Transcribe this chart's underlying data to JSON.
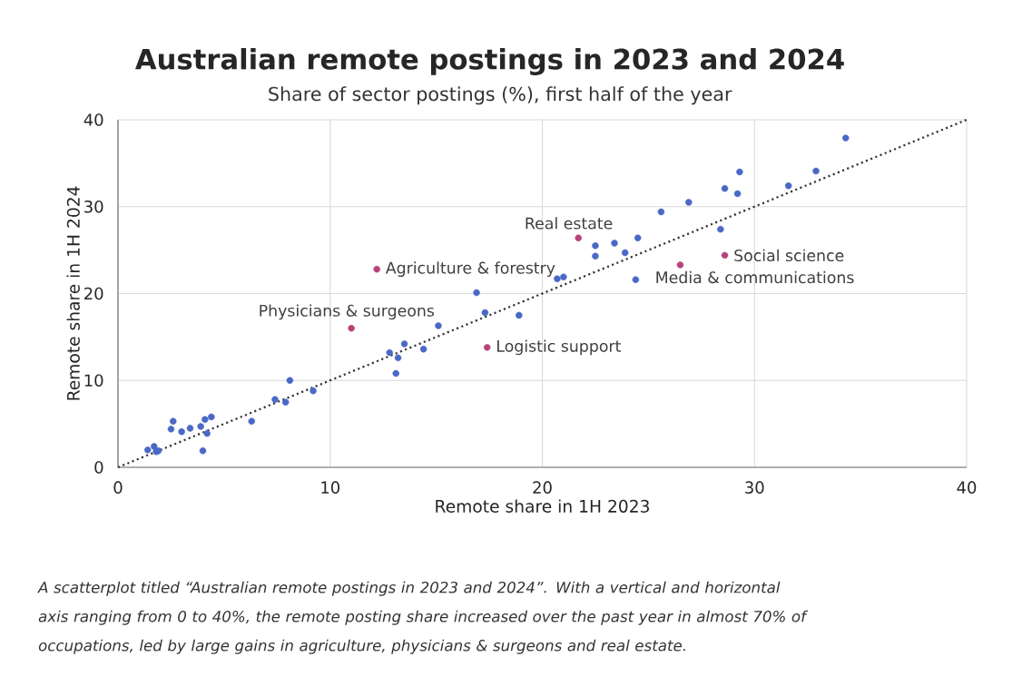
{
  "chart_data": {
    "type": "scatter",
    "title": "Australian remote postings in 2023 and 2024",
    "subtitle": "Share of sector postings (%), first half of the year",
    "xlabel": "Remote share in 1H 2023",
    "ylabel": "Remote share in 1H 2024",
    "xlim": [
      0,
      40
    ],
    "ylim": [
      0,
      40
    ],
    "xticks": [
      0,
      10,
      20,
      30,
      40
    ],
    "yticks": [
      0,
      10,
      20,
      30,
      40
    ],
    "grid": true,
    "marker": "circle",
    "series": [
      {
        "color": "#4a68c5",
        "x": [
          1.4,
          1.7,
          1.8,
          1.9,
          2.5,
          2.6,
          3.0,
          3.4,
          3.9,
          4.1,
          4.4,
          4.2,
          4.0,
          6.3,
          7.4,
          7.9,
          8.1,
          9.2,
          12.8,
          13.2,
          13.1,
          13.5,
          14.4,
          15.1,
          16.9,
          17.3,
          18.9,
          20.7,
          21.0,
          22.5,
          22.5,
          23.4,
          23.9,
          24.5,
          24.4,
          25.6,
          26.9,
          28.6,
          29.3,
          29.2,
          28.4,
          31.6,
          32.9,
          34.3
        ],
        "values": [
          2.0,
          2.4,
          1.8,
          1.9,
          4.4,
          5.3,
          4.1,
          4.5,
          4.7,
          5.5,
          5.8,
          3.9,
          1.9,
          5.3,
          7.8,
          7.5,
          10.0,
          8.8,
          13.2,
          12.6,
          10.8,
          14.2,
          13.6,
          16.3,
          20.1,
          17.8,
          17.5,
          21.7,
          21.9,
          25.5,
          24.3,
          25.8,
          24.7,
          26.4,
          21.6,
          29.4,
          30.5,
          32.1,
          34.0,
          31.5,
          27.4,
          32.4,
          34.1,
          37.9
        ]
      },
      {
        "color": "#b8437a",
        "x": [
          21.7,
          12.2,
          11.0,
          17.4,
          26.5,
          28.6
        ],
        "values": [
          26.4,
          22.8,
          16.0,
          13.8,
          23.3,
          24.4
        ]
      },
      {
        "type": "line",
        "color": "#333333",
        "line_style": "dotted",
        "marker": "none",
        "x": [
          0,
          40
        ],
        "values": [
          0,
          40
        ]
      }
    ],
    "annotations": [
      {
        "text": "Real estate",
        "x": 21.7,
        "y": 26.4
      },
      {
        "text": "Agriculture & forestry",
        "x": 12.2,
        "y": 22.8
      },
      {
        "text": "Physicians & surgeons",
        "x": 11.0,
        "y": 16.0
      },
      {
        "text": "Logistic support",
        "x": 17.4,
        "y": 13.8
      },
      {
        "text": "Media & communications",
        "x": 26.5,
        "y": 23.3
      },
      {
        "text": "Social science",
        "x": 28.6,
        "y": 24.4
      },
      "A scatterplot titled “Australian remote postings in 2023 and 2024”. With a vertical and horizontal axis ranging from  0 to 40%, the remote posting share increased over the past year in almost 70% of occupations, led by large gains in agriculture, physicians & surgeons and real estate."
    ]
  }
}
